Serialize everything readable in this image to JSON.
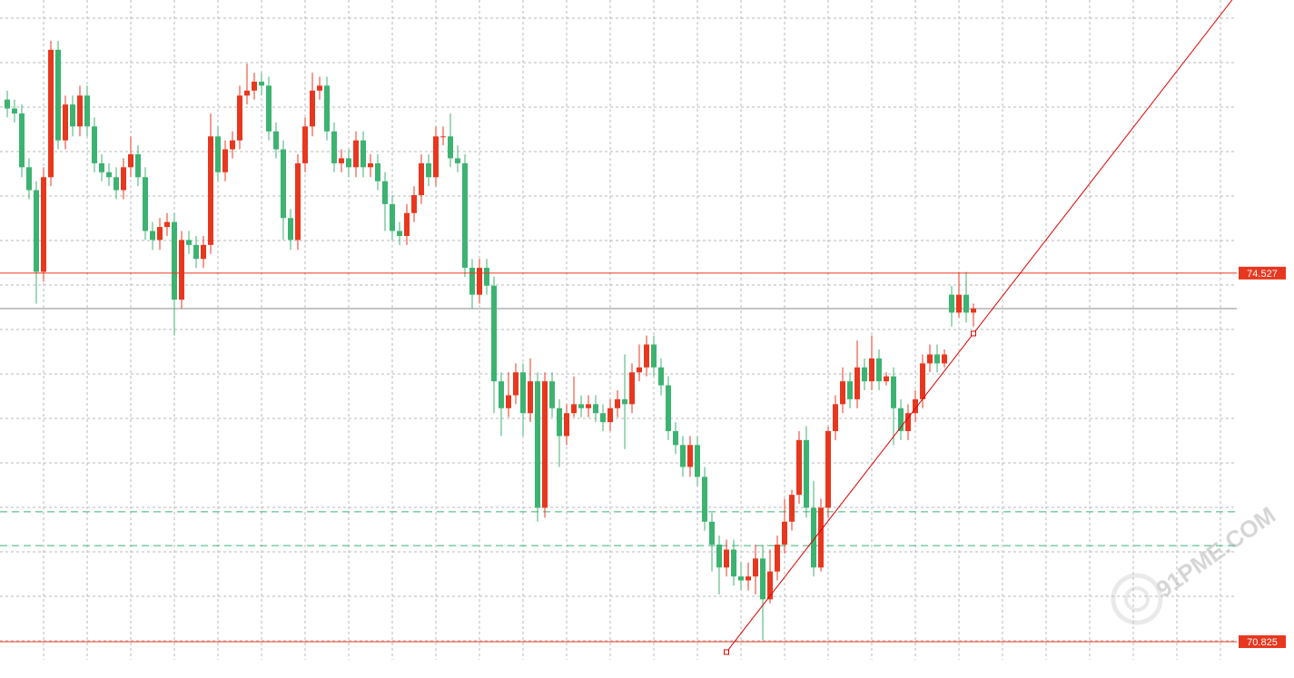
{
  "chart_data": {
    "type": "candlestick",
    "up_color": "#e8371f",
    "down_color": "#3cb371",
    "ylim": [
      70.46,
      77.27
    ],
    "grid": true,
    "open": [
      76.27,
      76.18,
      76.13,
      75.59,
      75.36,
      74.54,
      75.49,
      76.77,
      75.86,
      76.22,
      76.0,
      76.31,
      76.0,
      75.63,
      75.54,
      75.49,
      75.36,
      75.59,
      75.72,
      75.49,
      74.95,
      74.86,
      74.99,
      75.04,
      74.26,
      74.86,
      74.81,
      74.67,
      74.81,
      75.9,
      75.54,
      75.77,
      75.86,
      76.31,
      76.36,
      76.45,
      76.41,
      75.95,
      75.77,
      75.08,
      74.86,
      75.63,
      76.0,
      76.36,
      76.41,
      75.95,
      75.63,
      75.68,
      75.59,
      75.86,
      75.59,
      75.63,
      75.45,
      75.22,
      74.95,
      74.9,
      75.13,
      75.31,
      75.63,
      75.49,
      75.9,
      75.9,
      75.68,
      75.63,
      74.58,
      74.31,
      74.58,
      74.4,
      73.44,
      73.17,
      73.3,
      73.53,
      73.12,
      73.44,
      72.17,
      73.44,
      73.17,
      72.89,
      73.12,
      73.21,
      73.17,
      73.21,
      73.12,
      73.03,
      73.17,
      73.26,
      73.21,
      73.53,
      73.58,
      73.81,
      73.58,
      73.4,
      72.94,
      72.8,
      72.58,
      72.8,
      72.48,
      72.03,
      71.8,
      71.57,
      71.75,
      71.48,
      71.44,
      71.48,
      71.66,
      71.25,
      71.53,
      71.8,
      72.03,
      72.3,
      72.85,
      72.17,
      71.57,
      72.17,
      72.94,
      73.21,
      73.44,
      73.26,
      73.58,
      73.44,
      73.67,
      73.44,
      73.49,
      73.17,
      72.94,
      73.12,
      73.26,
      73.62,
      73.71,
      73.62,
      74.31,
      74.13,
      74.31,
      74.13
    ],
    "high": [
      76.36,
      76.27,
      76.22,
      75.68,
      75.45,
      75.59,
      76.86,
      76.86,
      76.31,
      76.31,
      76.41,
      76.41,
      76.09,
      75.72,
      75.63,
      75.59,
      75.68,
      75.9,
      75.81,
      75.59,
      75.04,
      75.08,
      75.13,
      75.13,
      74.95,
      74.95,
      74.9,
      74.9,
      76.13,
      76.0,
      75.86,
      75.95,
      76.41,
      76.63,
      76.54,
      76.54,
      76.5,
      76.04,
      75.86,
      75.17,
      75.72,
      76.09,
      76.54,
      76.5,
      76.5,
      76.04,
      75.77,
      75.77,
      75.95,
      75.95,
      75.72,
      75.72,
      75.54,
      75.31,
      75.04,
      75.22,
      75.4,
      75.72,
      75.72,
      76.0,
      76.0,
      76.13,
      75.81,
      75.72,
      74.67,
      74.67,
      74.67,
      74.49,
      73.53,
      73.53,
      73.62,
      73.62,
      73.67,
      73.53,
      73.53,
      73.53,
      73.26,
      73.21,
      73.49,
      73.3,
      73.3,
      73.3,
      73.21,
      73.26,
      73.35,
      73.71,
      73.62,
      73.81,
      73.9,
      73.9,
      73.67,
      73.49,
      73.03,
      72.89,
      72.89,
      72.89,
      72.58,
      72.12,
      71.89,
      71.85,
      71.85,
      71.62,
      71.62,
      71.8,
      71.8,
      71.75,
      71.89,
      72.26,
      72.35,
      72.94,
      72.99,
      72.44,
      72.26,
      72.99,
      73.3,
      73.58,
      73.53,
      73.85,
      73.67,
      73.9,
      73.76,
      73.53,
      73.58,
      73.26,
      73.21,
      73.35,
      73.71,
      73.81,
      73.81,
      73.76,
      74.4,
      74.54,
      74.54,
      74.22
    ],
    "low": [
      76.09,
      76.04,
      75.49,
      75.27,
      74.22,
      74.44,
      75.4,
      75.77,
      75.77,
      75.9,
      75.9,
      75.9,
      75.54,
      75.45,
      75.4,
      75.27,
      75.27,
      75.49,
      75.4,
      74.86,
      74.76,
      74.76,
      74.9,
      73.9,
      74.17,
      74.72,
      74.58,
      74.58,
      74.72,
      75.45,
      75.45,
      75.68,
      75.77,
      76.22,
      76.27,
      76.31,
      75.86,
      75.68,
      74.86,
      74.76,
      74.76,
      75.54,
      75.9,
      76.27,
      75.86,
      75.54,
      75.54,
      75.49,
      75.49,
      75.49,
      75.49,
      75.36,
      74.95,
      74.86,
      74.81,
      74.81,
      75.04,
      75.22,
      75.4,
      75.4,
      75.81,
      75.59,
      75.54,
      74.49,
      74.17,
      74.22,
      74.31,
      73.12,
      72.89,
      73.08,
      73.21,
      72.89,
      73.03,
      72.03,
      72.07,
      73.08,
      72.58,
      72.8,
      73.08,
      73.08,
      73.08,
      73.03,
      72.94,
      72.94,
      73.08,
      72.76,
      73.12,
      73.44,
      73.49,
      73.49,
      73.3,
      72.85,
      72.71,
      72.48,
      72.48,
      72.39,
      71.94,
      71.53,
      71.3,
      71.48,
      71.39,
      71.34,
      71.34,
      71.3,
      70.84,
      71.21,
      71.44,
      71.71,
      71.94,
      72.21,
      72.07,
      71.48,
      71.53,
      72.07,
      72.85,
      73.12,
      73.17,
      73.17,
      73.35,
      73.35,
      73.35,
      73.4,
      72.8,
      72.85,
      72.85,
      73.03,
      73.17,
      73.53,
      73.53,
      73.58,
      73.99,
      74.08,
      74.03,
      73.99
    ],
    "close": [
      76.18,
      76.13,
      75.59,
      75.36,
      74.54,
      75.49,
      76.77,
      75.86,
      76.22,
      76.0,
      76.31,
      76.0,
      75.63,
      75.54,
      75.49,
      75.36,
      75.59,
      75.72,
      75.49,
      74.95,
      74.86,
      74.99,
      75.04,
      74.26,
      74.86,
      74.81,
      74.67,
      74.81,
      75.9,
      75.54,
      75.77,
      75.86,
      76.31,
      76.36,
      76.45,
      76.41,
      75.95,
      75.77,
      75.08,
      74.86,
      75.63,
      76.0,
      76.36,
      76.41,
      75.95,
      75.63,
      75.68,
      75.59,
      75.86,
      75.59,
      75.63,
      75.45,
      75.22,
      74.95,
      74.9,
      75.13,
      75.31,
      75.63,
      75.49,
      75.9,
      75.9,
      75.68,
      75.63,
      74.58,
      74.31,
      74.58,
      74.4,
      73.44,
      73.17,
      73.3,
      73.53,
      73.12,
      73.44,
      72.17,
      73.44,
      73.17,
      72.89,
      73.12,
      73.21,
      73.17,
      73.21,
      73.12,
      73.03,
      73.17,
      73.26,
      73.21,
      73.53,
      73.58,
      73.81,
      73.58,
      73.4,
      72.94,
      72.8,
      72.58,
      72.8,
      72.48,
      72.03,
      71.8,
      71.57,
      71.75,
      71.48,
      71.44,
      71.48,
      71.66,
      71.25,
      71.53,
      71.8,
      72.03,
      72.3,
      72.85,
      72.17,
      71.57,
      72.17,
      72.94,
      73.21,
      73.44,
      73.26,
      73.58,
      73.44,
      73.67,
      73.44,
      73.49,
      73.17,
      72.94,
      73.12,
      73.26,
      73.62,
      73.71,
      73.62,
      73.71,
      74.13,
      74.31,
      74.13,
      74.17
    ],
    "price_lines": [
      {
        "value": 74.527,
        "color": "#e8371f"
      },
      {
        "value": 70.825,
        "color": "#e8371f"
      }
    ],
    "level_lines": [
      {
        "value": 74.17,
        "color": "#8a8a8a",
        "dashed": false
      },
      {
        "value": 72.13,
        "color": "#3cb371",
        "dashed": true
      },
      {
        "value": 71.79,
        "color": "#3cb371",
        "dashed": true
      }
    ],
    "trendline": {
      "x": [
        99,
        133
      ],
      "y": [
        70.72,
        73.92
      ],
      "color": "#e00000"
    },
    "watermark": "91PME.COM"
  }
}
